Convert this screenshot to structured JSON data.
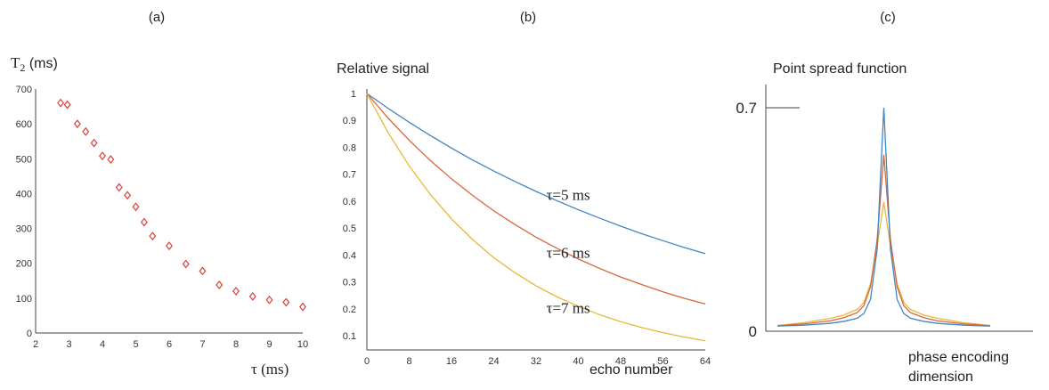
{
  "panels": {
    "a": {
      "label": "(a)"
    },
    "b": {
      "label": "(b)"
    },
    "c": {
      "label": "(c)"
    }
  },
  "chart_data": [
    {
      "type": "scatter",
      "panel": "a",
      "ylabel_main": "T",
      "ylabel_sub": "2",
      "ylabel_unit": " (ms)",
      "xlabel": "τ (ms)",
      "xlim": [
        2,
        10
      ],
      "ylim": [
        0,
        700
      ],
      "xticks": [
        2,
        3,
        4,
        5,
        6,
        7,
        8,
        9,
        10
      ],
      "yticks": [
        0,
        100,
        200,
        300,
        400,
        500,
        600,
        700
      ],
      "marker": "diamond",
      "marker_color": "#d9413a",
      "x": [
        2.75,
        2.95,
        3.25,
        3.5,
        3.75,
        4.0,
        4.25,
        4.5,
        4.75,
        5.0,
        5.25,
        5.5,
        6.0,
        6.5,
        7.0,
        7.5,
        8.0,
        8.5,
        9.0,
        9.5,
        10.0
      ],
      "y": [
        660,
        655,
        600,
        578,
        545,
        508,
        498,
        418,
        395,
        362,
        318,
        278,
        250,
        198,
        178,
        138,
        120,
        105,
        95,
        88,
        75
      ]
    },
    {
      "type": "line",
      "panel": "b",
      "title": "Relative signal",
      "xlabel": "echo number",
      "xlim": [
        0,
        64
      ],
      "ylim": [
        0.05,
        1.0
      ],
      "xticks": [
        0,
        8,
        16,
        24,
        32,
        40,
        48,
        56,
        64
      ],
      "yticks": [
        0.1,
        0.2,
        0.3,
        0.4,
        0.5,
        0.6,
        0.7,
        0.8,
        0.9,
        1
      ],
      "x": [
        0,
        4,
        8,
        12,
        16,
        20,
        24,
        28,
        32,
        36,
        40,
        44,
        48,
        52,
        56,
        60,
        64
      ],
      "series": [
        {
          "name": "τ=5 ms",
          "color": "#3f86c4",
          "label_x": 39,
          "label_y": 0.625,
          "values": [
            1.0,
            0.945,
            0.893,
            0.844,
            0.797,
            0.753,
            0.712,
            0.673,
            0.636,
            0.601,
            0.568,
            0.537,
            0.507,
            0.479,
            0.453,
            0.428,
            0.405
          ]
        },
        {
          "name": "τ=6 ms",
          "color": "#d9653a",
          "label_x": 39,
          "label_y": 0.41,
          "values": [
            1.0,
            0.909,
            0.826,
            0.751,
            0.683,
            0.621,
            0.564,
            0.513,
            0.466,
            0.424,
            0.385,
            0.35,
            0.318,
            0.29,
            0.263,
            0.239,
            0.218
          ]
        },
        {
          "name": "τ=7 ms",
          "color": "#e6b83a",
          "label_x": 39,
          "label_y": 0.205,
          "values": [
            1.0,
            0.855,
            0.731,
            0.625,
            0.534,
            0.457,
            0.39,
            0.334,
            0.285,
            0.244,
            0.209,
            0.178,
            0.152,
            0.13,
            0.111,
            0.095,
            0.081
          ]
        }
      ]
    },
    {
      "type": "line",
      "panel": "c",
      "title": "Point spread function",
      "xlabel_line1": "phase encoding",
      "xlabel_line2": "dimension",
      "ylim": [
        0,
        0.7
      ],
      "yticks": [
        0,
        0.7
      ],
      "ytick_labels": [
        "0",
        "0.7"
      ],
      "x": [
        -16,
        -12,
        -8,
        -6,
        -4,
        -3,
        -2,
        -1,
        0,
        1,
        2,
        3,
        4,
        6,
        8,
        12,
        16
      ],
      "series": [
        {
          "color": "#3f86c4",
          "values": [
            0.005,
            0.008,
            0.014,
            0.02,
            0.03,
            0.045,
            0.09,
            0.25,
            0.7,
            0.25,
            0.09,
            0.045,
            0.03,
            0.02,
            0.014,
            0.008,
            0.005
          ]
        },
        {
          "color": "#d9653a",
          "values": [
            0.006,
            0.012,
            0.022,
            0.032,
            0.048,
            0.07,
            0.13,
            0.28,
            0.55,
            0.28,
            0.13,
            0.07,
            0.048,
            0.032,
            0.022,
            0.012,
            0.006
          ]
        },
        {
          "color": "#e6b83a",
          "values": [
            0.007,
            0.016,
            0.03,
            0.04,
            0.058,
            0.08,
            0.14,
            0.26,
            0.4,
            0.26,
            0.14,
            0.08,
            0.058,
            0.04,
            0.03,
            0.016,
            0.007
          ]
        }
      ]
    }
  ]
}
